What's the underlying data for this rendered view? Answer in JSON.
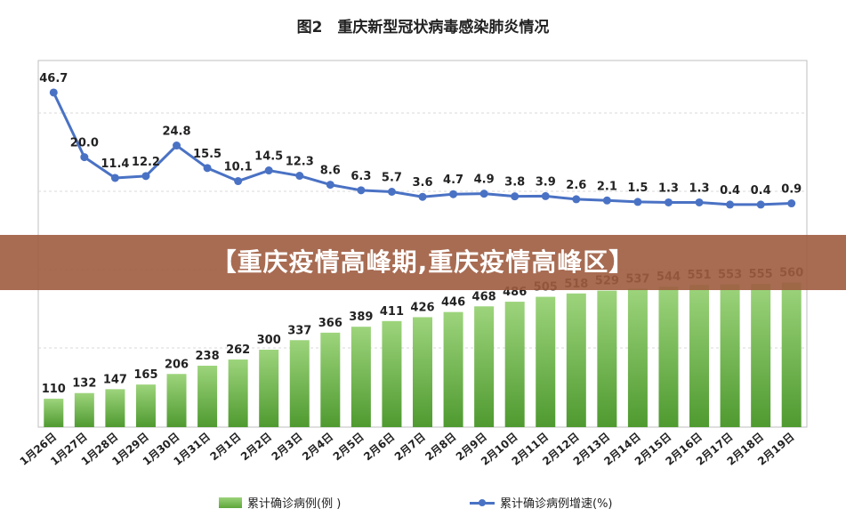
{
  "title": "图2　重庆新型冠状病毒感染肺炎情况",
  "banner": "【重庆疫情高峰期,重庆疫情高峰区】",
  "legend": {
    "bar_label": "累计确诊病例(例 )",
    "line_label": "累计确诊病例增速(%)"
  },
  "colors": {
    "bar": "#6ab04c",
    "line": "#4a72c4"
  },
  "chart_data": {
    "type": "bar+line",
    "categories": [
      "1月26日",
      "1月27日",
      "1月28日",
      "1月29日",
      "1月30日",
      "1月31日",
      "2月1日",
      "2月2日",
      "2月3日",
      "2月4日",
      "2月5日",
      "2月6日",
      "2月7日",
      "2月8日",
      "2月9日",
      "2月10日",
      "2月11日",
      "2月12日",
      "2月13日",
      "2月14日",
      "2月15日",
      "2月16日",
      "2月17日",
      "2月18日",
      "2月19日"
    ],
    "series": [
      {
        "name": "累计确诊病例(例 )",
        "type": "bar",
        "values": [
          110,
          132,
          147,
          165,
          206,
          238,
          262,
          300,
          337,
          366,
          389,
          411,
          426,
          446,
          468,
          486,
          505,
          518,
          529,
          537,
          544,
          551,
          553,
          555,
          560
        ]
      },
      {
        "name": "累计确诊病例增速(%)",
        "type": "line",
        "values": [
          46.7,
          20.0,
          11.4,
          12.2,
          24.8,
          15.5,
          10.1,
          14.5,
          12.3,
          8.6,
          6.3,
          5.7,
          3.6,
          4.7,
          4.9,
          3.8,
          3.9,
          2.6,
          2.1,
          1.5,
          1.3,
          1.3,
          0.4,
          0.4,
          0.9
        ]
      }
    ]
  }
}
